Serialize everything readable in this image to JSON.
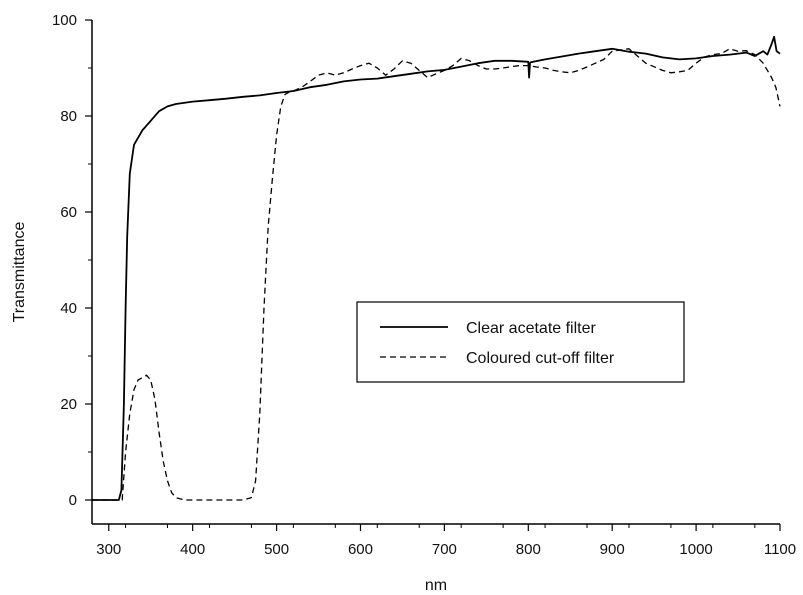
{
  "chart_data": {
    "type": "line",
    "title": "",
    "xlabel": "nm",
    "ylabel": "Transmittance",
    "xlim": [
      280,
      1100
    ],
    "ylim": [
      -5,
      100
    ],
    "x_ticks": [
      300,
      400,
      500,
      600,
      700,
      800,
      900,
      1000,
      1100
    ],
    "y_ticks": [
      0,
      20,
      40,
      60,
      80,
      100
    ],
    "grid": false,
    "legend_position": "center-right",
    "series": [
      {
        "name": "Clear acetate filter",
        "style": "solid",
        "color": "#000000",
        "x": [
          280,
          312,
          315,
          318,
          320,
          322,
          325,
          330,
          340,
          350,
          360,
          370,
          380,
          400,
          420,
          440,
          460,
          480,
          500,
          520,
          540,
          560,
          580,
          600,
          620,
          640,
          660,
          680,
          700,
          720,
          740,
          760,
          780,
          800,
          801,
          802,
          803,
          820,
          840,
          860,
          880,
          900,
          920,
          940,
          960,
          980,
          1000,
          1020,
          1040,
          1060,
          1070,
          1080,
          1085,
          1090,
          1093,
          1096,
          1100
        ],
        "y": [
          0,
          0,
          2,
          20,
          40,
          55,
          68,
          74,
          77,
          79,
          81,
          82,
          82.5,
          83,
          83.3,
          83.6,
          84,
          84.3,
          84.8,
          85.2,
          86,
          86.5,
          87.2,
          87.6,
          87.8,
          88.3,
          88.8,
          89.3,
          89.6,
          90.3,
          91,
          91.5,
          91.5,
          91.3,
          88,
          91,
          91.2,
          91.8,
          92.4,
          93,
          93.5,
          94,
          93.4,
          93,
          92.2,
          91.8,
          92,
          92.5,
          92.8,
          93.2,
          92.5,
          93.5,
          92.8,
          95,
          96.5,
          93.5,
          93
        ]
      },
      {
        "name": "Coloured cut-off filter",
        "style": "dashed",
        "color": "#000000",
        "x": [
          280,
          312,
          316,
          320,
          325,
          330,
          335,
          340,
          345,
          350,
          355,
          360,
          365,
          370,
          375,
          380,
          390,
          400,
          420,
          440,
          460,
          470,
          475,
          480,
          485,
          490,
          495,
          500,
          505,
          510,
          515,
          520,
          530,
          540,
          550,
          560,
          570,
          580,
          590,
          600,
          610,
          620,
          630,
          640,
          650,
          660,
          670,
          680,
          690,
          700,
          710,
          720,
          730,
          740,
          750,
          760,
          770,
          780,
          790,
          800,
          810,
          820,
          830,
          840,
          850,
          860,
          870,
          880,
          890,
          900,
          920,
          940,
          960,
          970,
          980,
          990,
          1000,
          1010,
          1020,
          1030,
          1040,
          1050,
          1060,
          1070,
          1080,
          1090,
          1095,
          1100
        ],
        "y": [
          0,
          0,
          0,
          10,
          18,
          23,
          25,
          25.5,
          26,
          25,
          21,
          14,
          8,
          4,
          1.5,
          0.5,
          0,
          0,
          0,
          0,
          0,
          0.5,
          4,
          18,
          40,
          57,
          67,
          76,
          82,
          84.5,
          85,
          85.2,
          86,
          87.2,
          88.5,
          89,
          88.5,
          89,
          89.8,
          90.5,
          91,
          90,
          88.5,
          89.8,
          91.5,
          91,
          89.5,
          88,
          88.8,
          89.5,
          90.5,
          92,
          91.5,
          90.5,
          89.8,
          89.8,
          90,
          90.3,
          90.5,
          90.5,
          90.2,
          90,
          89.5,
          89.2,
          89,
          89.5,
          90.2,
          91,
          91.8,
          93.5,
          94,
          91,
          89.5,
          89,
          89.2,
          89.5,
          91,
          92.3,
          92.8,
          93,
          94,
          93.5,
          93.6,
          92.8,
          91,
          88,
          86,
          82
        ]
      }
    ]
  }
}
